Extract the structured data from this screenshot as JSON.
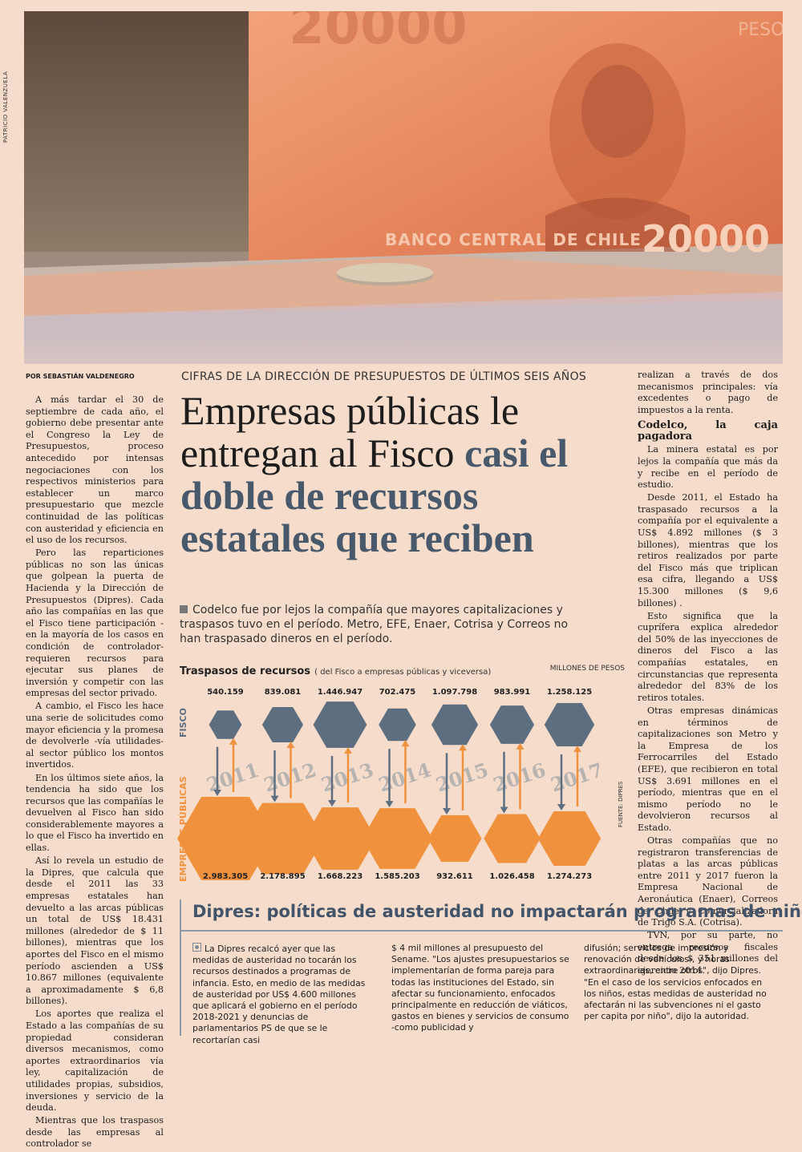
{
  "photo": {
    "credit": "PATRICIO VALENZUELA",
    "banknote_text": "BANCO CENTRAL DE CHILE",
    "denomination": "20000",
    "currency_word": "PESOS"
  },
  "article": {
    "byline": "POR SEBASTIÁN VALDENEGRO",
    "kicker": "CIFRAS DE LA DIRECCIÓN DE PRESUPUESTOS DE ÚLTIMOS SEIS AÑOS",
    "headline_plain": "Empresas públicas le entregan al Fisco ",
    "headline_accent": "casi el doble de recursos estatales que reciben",
    "summary": "Codelco fue por lejos la compañía que mayores capitalizaciones y traspasos tuvo en el período. Metro, EFE, Enaer, Cotrisa y Correos no han traspasado dineros en el período.",
    "left_paragraphs": [
      "A más tardar el 30 de septiembre de cada año, el gobierno debe presentar ante el Congreso la Ley de Presupuestos, proceso antecedido por intensas negociaciones con los respectivos ministerios para establecer un marco presupuestario que mezcle continuidad de las políticas con austeridad y eficiencia en el uso de los recursos.",
      "Pero las reparticiones públicas no son las únicas que golpean la puerta de Hacienda y la Dirección de Presupuestos (Dipres). Cada año las compañías en las que el Fisco tiene participación -en la mayoría de los casos en condición de controlador- requieren recursos para ejecutar sus planes de inversión y competir con las empresas del sector privado.",
      "A cambio, el Fisco les hace una serie de solicitudes como mayor eficiencia y la promesa de devolverle -vía utilidades- al sector público los montos invertidos.",
      "En los últimos siete años, la tendencia ha sido que los recursos que las compañías le devuelven al Fisco han sido considerablemente mayores a lo que el Fisco ha invertido en ellas.",
      "Así lo revela un estudio de la Dipres, que calcula que desde el 2011 las 33 empresas estatales han devuelto a las arcas públicas un total de US$ 18.431 millones (alrededor de $ 11 billones), mientras que los aportes del Fisco en el mismo período ascienden a US$ 10.867 millones (equivalente a aproximadamente $ 6,8 billones).",
      "Los aportes que realiza el Estado a las compañías de su propiedad consideran diversos mecanismos, como aportes extraordinarios vía ley, capitalización de utilidades propias, subsidios, inversiones y servicio de la deuda.",
      "Mientras que los traspasos desde las empresas al controlador se"
    ],
    "right_intro": "realizan a través de dos mecanismos principales: vía excedentes o pago de impuestos a la renta.",
    "right_subhead": "Codelco, la caja pagadora",
    "right_paragraphs": [
      "La minera estatal es por lejos la compañía que más da y recibe en el período de estudio.",
      "Desde 2011, el Estado ha traspasado recursos a la compañía por el equivalente a US$ 4.892 millones ($ 3 billones), mientras que los retiros realizados por parte del Fisco más que triplican esa cifra, llegando a US$ 15.300 millones ($ 9,6 billones) .",
      "Esto significa que la cuprífera explica alrededor del 50% de las inyecciones de dineros del Fisco a las compañías estatales, en circunstancias que representa alrededor del 83% de los retiros totales.",
      "Otras empresas dinámicas en términos de capitalizaciones son Metro y la Empresa de los Ferrocarriles del Estado (EFE), que recibieron en total US$ 3.691 millones en el período, mientras que en el mismo período no le devolvieron recursos al Estado.",
      "Otras compañías que no registraron transferencias de platas a las arcas públicas entre 2011 y 2017 fueron la Empresa Nacional de Aeronáutica (Enaer), Correos de Chile y Comercializadora de Trigo S.A. (Cotrisa).",
      "TVN, por su parte, no entrega recursos fiscales desde los $ 351 millones del ejercicio 2014."
    ]
  },
  "chart_data": {
    "type": "bar",
    "title": "Traspasos de recursos",
    "subtitle": "( del Fisco a empresas públicas  y viceversa)",
    "units": "MILLONES DE PESOS",
    "source": "FUENTE: DIPRES",
    "row_label_top": "FISCO",
    "row_label_bottom": "EMPRESAS PÚBLICAS",
    "categories": [
      "2011",
      "2012",
      "2013",
      "2014",
      "2015",
      "2016",
      "2017"
    ],
    "series": [
      {
        "name": "FISCO",
        "values": [
          540159,
          839081,
          1446947,
          702475,
          1097798,
          983991,
          1258125
        ]
      },
      {
        "name": "EMPRESAS PÚBLICAS",
        "values": [
          2983305,
          2178895,
          1668223,
          1585203,
          932611,
          1026458,
          1274273
        ]
      }
    ],
    "value_labels_top": [
      "540.159",
      "839.081",
      "1.446.947",
      "702.475",
      "1.097.798",
      "983.991",
      "1.258.125"
    ],
    "value_labels_bottom": [
      "2.983.305",
      "2.178.895",
      "1.668.223",
      "1.585.203",
      "932.611",
      "1.026.458",
      "1.274.273"
    ],
    "colors": {
      "fisco": "#5c6e80",
      "empresas": "#f0923d",
      "arrow_down": "#5c6e80",
      "arrow_up": "#f0923d",
      "year": "#b7b3b0"
    }
  },
  "box": {
    "title": "Dipres: políticas de austeridad no impactarán programas de niñez",
    "col1": "La Dipres recalcó ayer que las medidas de austeridad no tocarán los recursos destinados a programas de infancia. Esto, en medio de las medidas de austeridad por US$ 4.600 millones que aplicará el gobierno en el período 2018-2021 y denuncias de parlamentarios PS de que se le recortarían casi",
    "col2": "$ 4 mil millones al presupuesto del Sename. \"Los ajustes presupuestarios se implementarían de forma pareja para todas las instituciones del Estado, sin afectar su funcionamiento, enfocados principalmente en reducción de viáticos, gastos en bienes y servicios de consumo -como publicidad y",
    "col3a": "difusión; servicios de impresión y renovación de vehículos-, y horas extraordinarias, entre otros\", dijo Dipres.",
    "col3b": "\"En el caso de los servicios enfocados en los niños, estas medidas de austeridad no afectarán ni las subvenciones ni el gasto per capita por niño\", dijo la autoridad."
  }
}
